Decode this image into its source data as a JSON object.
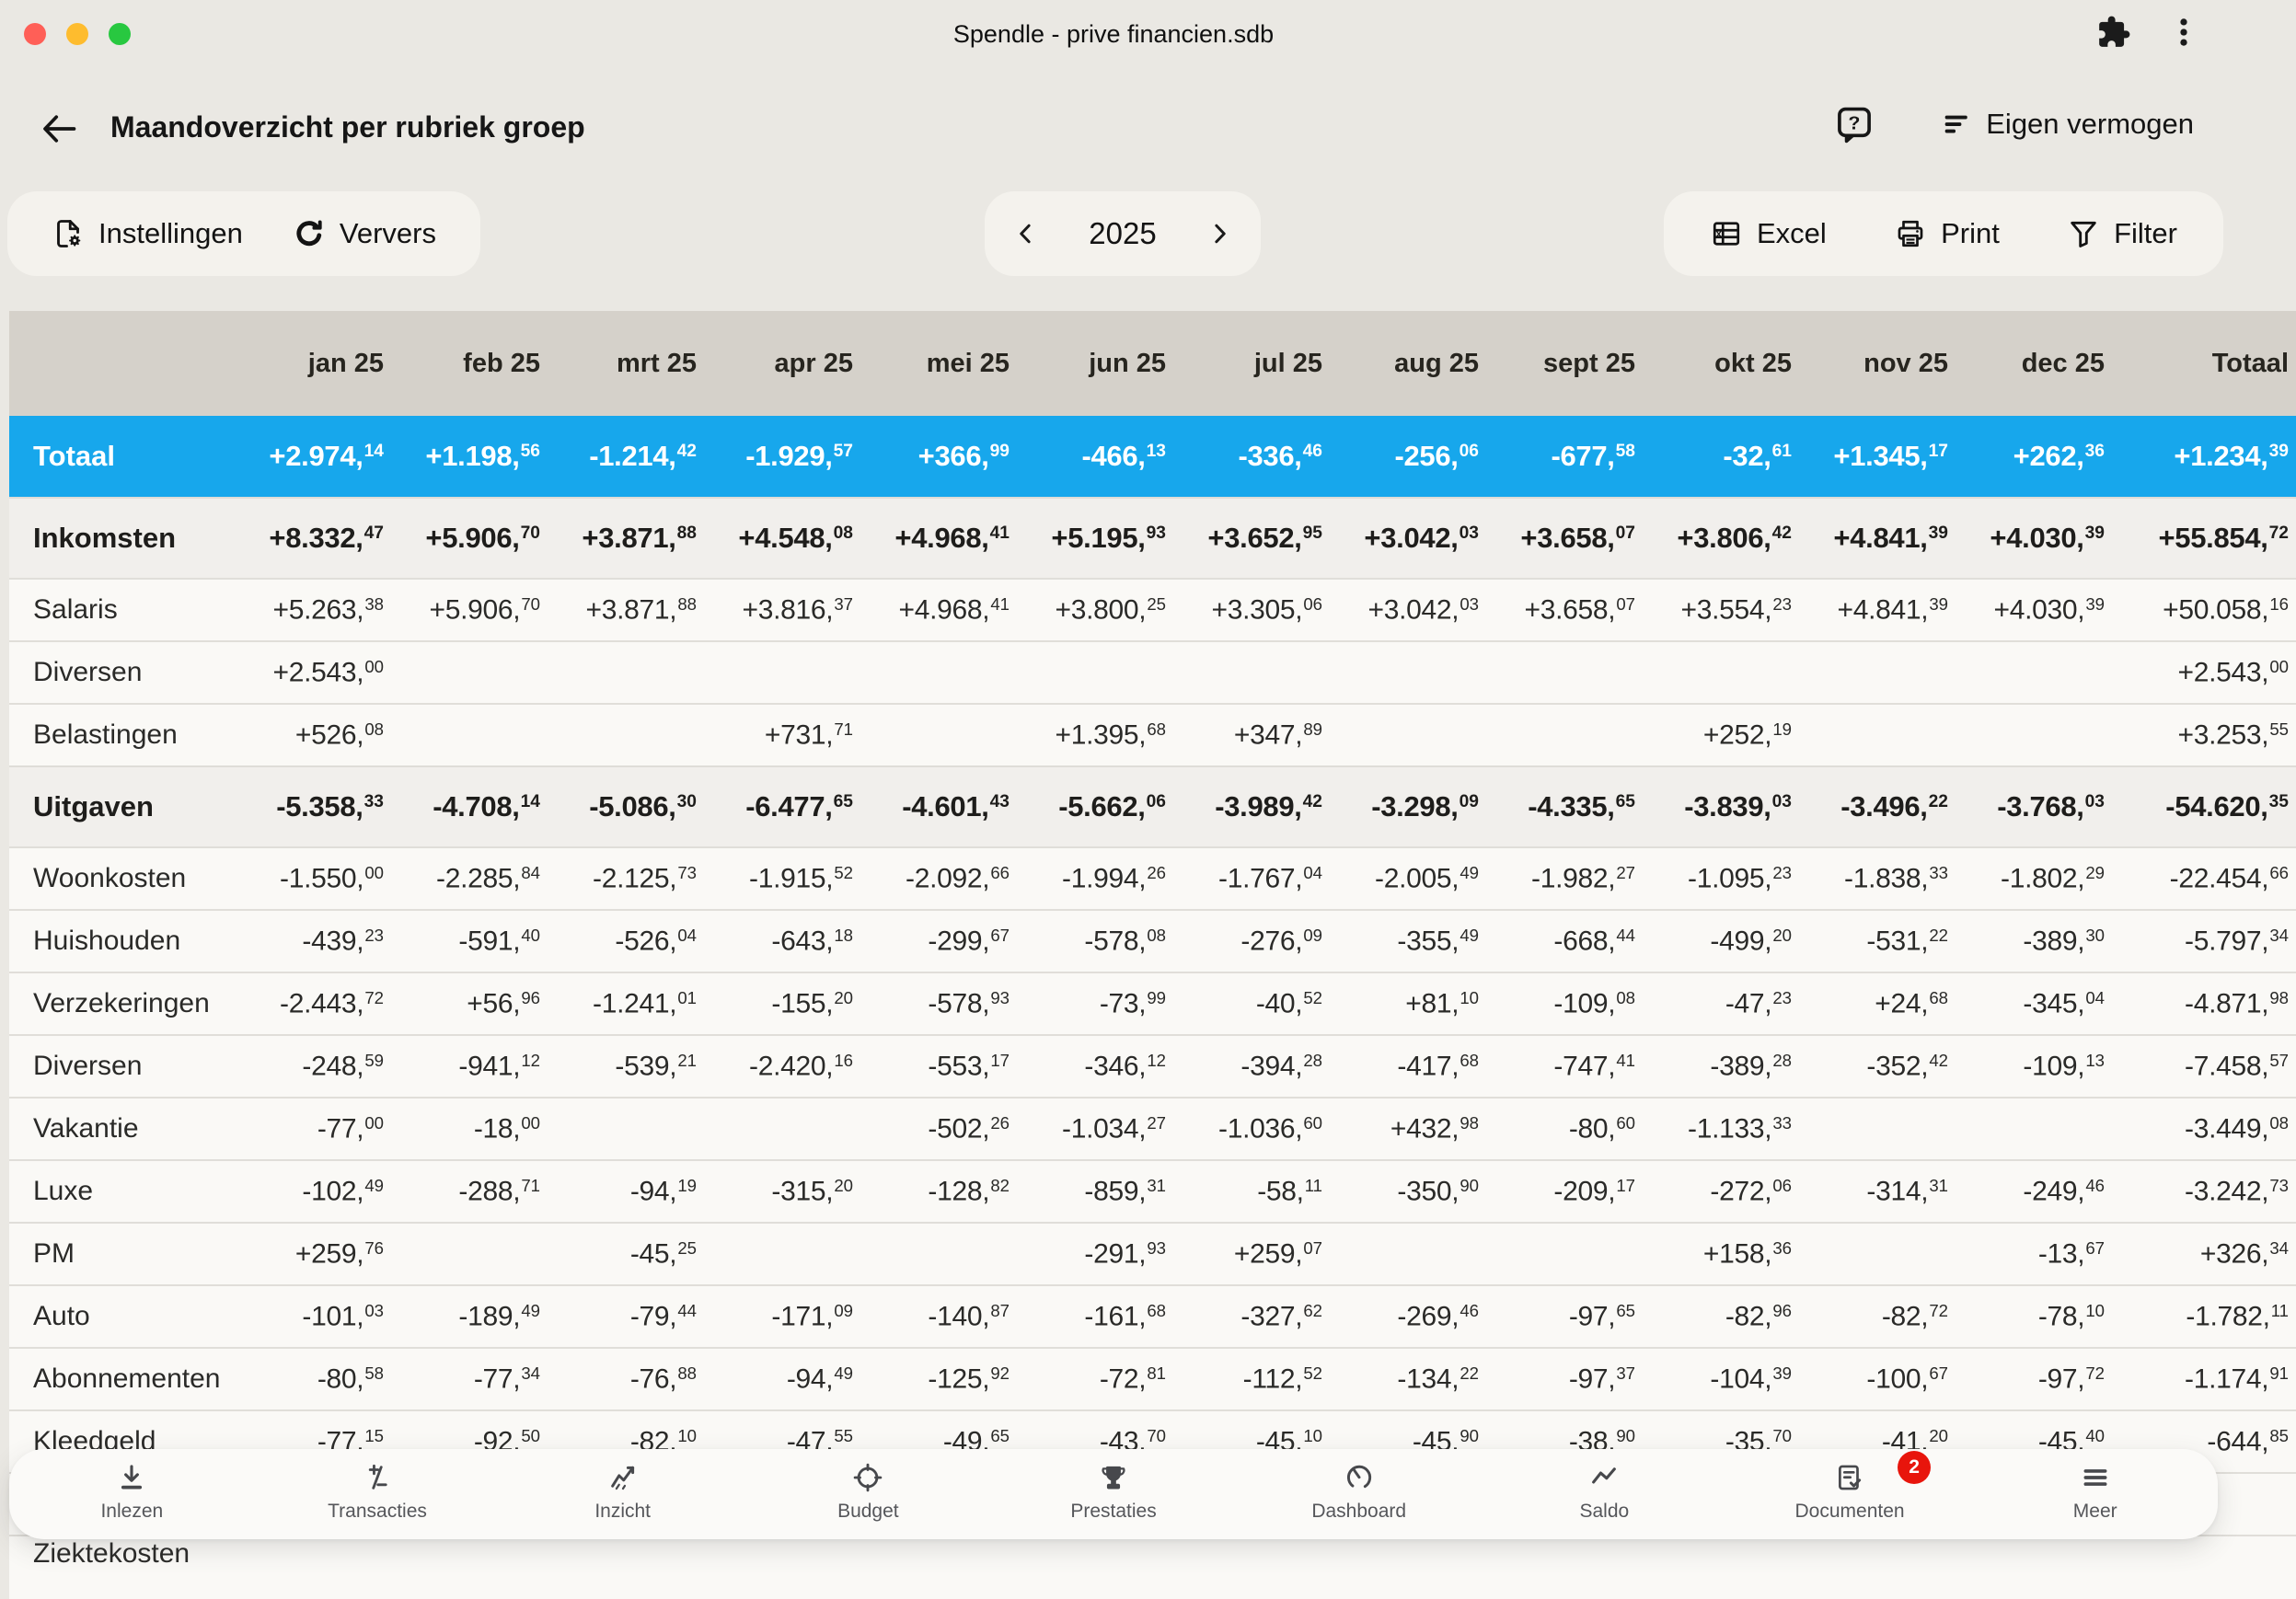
{
  "window": {
    "title": "Spendle - prive financien.sdb"
  },
  "header": {
    "title": "Maandoverzicht per rubriek groep",
    "help_glyph": "?",
    "menu_label": "Eigen vermogen"
  },
  "toolbar": {
    "settings_label": "Instellingen",
    "refresh_label": "Ververs",
    "year": "2025",
    "excel_label": "Excel",
    "print_label": "Print",
    "filter_label": "Filter"
  },
  "table": {
    "columns": [
      "jan 25",
      "feb 25",
      "mrt 25",
      "apr 25",
      "mei 25",
      "jun 25",
      "jul 25",
      "aug 25",
      "sept 25",
      "okt 25",
      "nov 25",
      "dec 25",
      "Totaal"
    ],
    "rows": [
      {
        "label": "Totaal",
        "type": "total",
        "values": [
          "+2.974,14",
          "+1.198,56",
          "-1.214,42",
          "-1.929,57",
          "+366,99",
          "-466,13",
          "-336,46",
          "-256,06",
          "-677,58",
          "-32,61",
          "+1.345,17",
          "+262,36",
          "+1.234,39"
        ]
      },
      {
        "label": "Inkomsten",
        "type": "group",
        "values": [
          "+8.332,47",
          "+5.906,70",
          "+3.871,88",
          "+4.548,08",
          "+4.968,41",
          "+5.195,93",
          "+3.652,95",
          "+3.042,03",
          "+3.658,07",
          "+3.806,42",
          "+4.841,39",
          "+4.030,39",
          "+55.854,72"
        ]
      },
      {
        "label": "Salaris",
        "type": "detail",
        "values": [
          "+5.263,38",
          "+5.906,70",
          "+3.871,88",
          "+3.816,37",
          "+4.968,41",
          "+3.800,25",
          "+3.305,06",
          "+3.042,03",
          "+3.658,07",
          "+3.554,23",
          "+4.841,39",
          "+4.030,39",
          "+50.058,16"
        ]
      },
      {
        "label": "Diversen",
        "type": "detail",
        "values": [
          "+2.543,00",
          "",
          "",
          "",
          "",
          "",
          "",
          "",
          "",
          "",
          "",
          "",
          "+2.543,00"
        ]
      },
      {
        "label": "Belastingen",
        "type": "detail",
        "values": [
          "+526,08",
          "",
          "",
          "+731,71",
          "",
          "+1.395,68",
          "+347,89",
          "",
          "",
          "+252,19",
          "",
          "",
          "+3.253,55"
        ]
      },
      {
        "label": "Uitgaven",
        "type": "group",
        "values": [
          "-5.358,33",
          "-4.708,14",
          "-5.086,30",
          "-6.477,65",
          "-4.601,43",
          "-5.662,06",
          "-3.989,42",
          "-3.298,09",
          "-4.335,65",
          "-3.839,03",
          "-3.496,22",
          "-3.768,03",
          "-54.620,35"
        ]
      },
      {
        "label": "Woonkosten",
        "type": "detail",
        "values": [
          "-1.550,00",
          "-2.285,84",
          "-2.125,73",
          "-1.915,52",
          "-2.092,66",
          "-1.994,26",
          "-1.767,04",
          "-2.005,49",
          "-1.982,27",
          "-1.095,23",
          "-1.838,33",
          "-1.802,29",
          "-22.454,66"
        ]
      },
      {
        "label": "Huishouden",
        "type": "detail",
        "values": [
          "-439,23",
          "-591,40",
          "-526,04",
          "-643,18",
          "-299,67",
          "-578,08",
          "-276,09",
          "-355,49",
          "-668,44",
          "-499,20",
          "-531,22",
          "-389,30",
          "-5.797,34"
        ]
      },
      {
        "label": "Verzekeringen",
        "type": "detail",
        "values": [
          "-2.443,72",
          "+56,96",
          "-1.241,01",
          "-155,20",
          "-578,93",
          "-73,99",
          "-40,52",
          "+81,10",
          "-109,08",
          "-47,23",
          "+24,68",
          "-345,04",
          "-4.871,98"
        ]
      },
      {
        "label": "Diversen",
        "type": "detail",
        "values": [
          "-248,59",
          "-941,12",
          "-539,21",
          "-2.420,16",
          "-553,17",
          "-346,12",
          "-394,28",
          "-417,68",
          "-747,41",
          "-389,28",
          "-352,42",
          "-109,13",
          "-7.458,57"
        ]
      },
      {
        "label": "Vakantie",
        "type": "detail",
        "values": [
          "-77,00",
          "-18,00",
          "",
          "",
          "-502,26",
          "-1.034,27",
          "-1.036,60",
          "+432,98",
          "-80,60",
          "-1.133,33",
          "",
          "",
          "-3.449,08"
        ]
      },
      {
        "label": "Luxe",
        "type": "detail",
        "values": [
          "-102,49",
          "-288,71",
          "-94,19",
          "-315,20",
          "-128,82",
          "-859,31",
          "-58,11",
          "-350,90",
          "-209,17",
          "-272,06",
          "-314,31",
          "-249,46",
          "-3.242,73"
        ]
      },
      {
        "label": "PM",
        "type": "detail",
        "values": [
          "+259,76",
          "",
          "-45,25",
          "",
          "",
          "-291,93",
          "+259,07",
          "",
          "",
          "+158,36",
          "",
          "-13,67",
          "+326,34"
        ]
      },
      {
        "label": "Auto",
        "type": "detail",
        "values": [
          "-101,03",
          "-189,49",
          "-79,44",
          "-171,09",
          "-140,87",
          "-161,68",
          "-327,62",
          "-269,46",
          "-97,65",
          "-82,96",
          "-82,72",
          "-78,10",
          "-1.782,11"
        ]
      },
      {
        "label": "Abonnementen",
        "type": "detail",
        "values": [
          "-80,58",
          "-77,34",
          "-76,88",
          "-94,49",
          "-125,92",
          "-72,81",
          "-112,52",
          "-134,22",
          "-97,37",
          "-104,39",
          "-100,67",
          "-97,72",
          "-1.174,91"
        ]
      },
      {
        "label": "Kleedgeld",
        "type": "detail",
        "values": [
          "-77,15",
          "-92,50",
          "-82,10",
          "-47,55",
          "-49,65",
          "-43,70",
          "-45,10",
          "-45,90",
          "-38,90",
          "-35,70",
          "-41,20",
          "-45,40",
          "-644,85"
        ]
      },
      {
        "label": "Ziektekosten",
        "type": "detail",
        "clipped": true,
        "values": [
          "",
          "",
          "",
          "",
          "",
          "",
          "",
          "",
          "",
          "",
          "",
          "",
          ""
        ]
      }
    ]
  },
  "bottom_nav": {
    "items": [
      {
        "label": "Inlezen",
        "icon": "download-icon"
      },
      {
        "label": "Transacties",
        "icon": "plus-minus-icon"
      },
      {
        "label": "Inzicht",
        "icon": "insight-chart-icon"
      },
      {
        "label": "Budget",
        "icon": "target-icon"
      },
      {
        "label": "Prestaties",
        "icon": "trophy-icon"
      },
      {
        "label": "Dashboard",
        "icon": "gauge-icon"
      },
      {
        "label": "Saldo",
        "icon": "line-chart-icon"
      },
      {
        "label": "Documenten",
        "icon": "document-check-icon",
        "badge": "2"
      },
      {
        "label": "Meer",
        "icon": "menu-icon"
      }
    ]
  },
  "colors": {
    "accent_blue": "#17a7ec",
    "table_header_bg": "#d5d1ca",
    "badge_red": "#e8150c",
    "traffic_close": "#ff5f57",
    "traffic_minimize": "#febc2e",
    "traffic_zoom": "#28c840"
  }
}
